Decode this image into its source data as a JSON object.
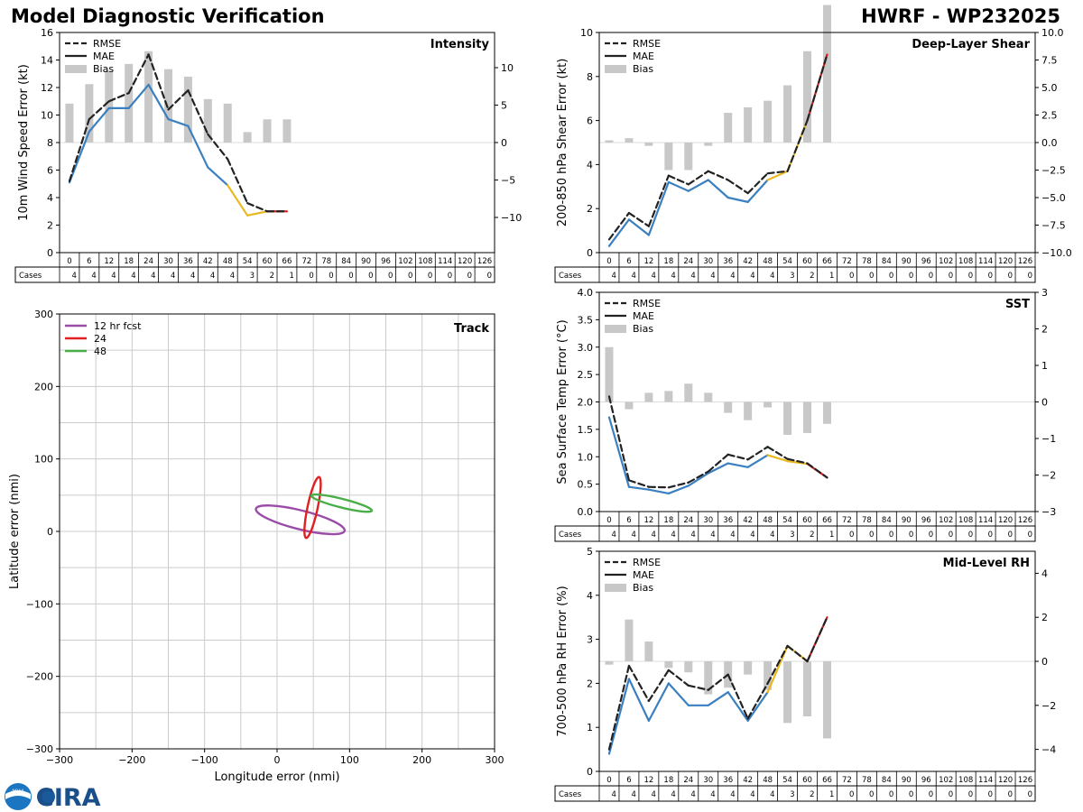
{
  "title_left": "Model Diagnostic Verification",
  "title_right": "HWRF - WP232025",
  "logo": {
    "noaa": "NOAA",
    "cira": "CIRA"
  },
  "colors": {
    "rmse": "#222222",
    "blue": "#3a80c0",
    "yellow": "#eab820",
    "red": "#e02020",
    "bias": "#c8c8c8",
    "grid": "#cccccc",
    "purple": "#9a4ca8",
    "green": "#4aae48"
  },
  "legend_labels": {
    "rmse": "RMSE",
    "mae": "MAE",
    "bias": "Bias"
  },
  "cases_label": "Cases",
  "chart_data": [
    {
      "id": "intensity",
      "type": "line",
      "title": "Intensity",
      "ylabel": "10m Wind Speed Error (kt)",
      "ylim": [
        0,
        16
      ],
      "yticks": [
        0,
        2,
        4,
        6,
        8,
        10,
        12,
        14,
        16
      ],
      "y2lim": [
        -14.7,
        14.7
      ],
      "y2ticks": [
        -10,
        -5,
        0,
        5,
        10
      ],
      "y2ticklabels": [
        "−10",
        "−5",
        "0",
        "5",
        "10"
      ],
      "x": [
        0,
        6,
        12,
        18,
        24,
        30,
        36,
        42,
        48,
        54,
        60,
        66,
        72,
        78,
        84,
        90,
        96,
        102,
        108,
        114,
        120,
        126
      ],
      "cases": [
        4,
        4,
        4,
        4,
        4,
        4,
        4,
        4,
        4,
        3,
        2,
        1,
        0,
        0,
        0,
        0,
        0,
        0,
        0,
        0,
        0,
        0
      ],
      "rmse": [
        5.2,
        9.7,
        11.0,
        11.6,
        14.4,
        10.4,
        11.8,
        8.6,
        6.8,
        3.6,
        3.0,
        3.0
      ],
      "mae": [
        5.1,
        8.8,
        10.5,
        10.5,
        12.2,
        9.7,
        9.2,
        6.2,
        4.9,
        2.7,
        3.0,
        3.0
      ],
      "bias": [
        5.2,
        7.8,
        9.6,
        10.5,
        12.2,
        9.8,
        8.8,
        5.8,
        5.2,
        1.4,
        3.1,
        3.1
      ]
    },
    {
      "id": "shear",
      "type": "line",
      "title": "Deep-Layer Shear",
      "ylabel": "200-850 hPa Shear Error (kt)",
      "ylim": [
        0,
        10
      ],
      "yticks": [
        0,
        2,
        4,
        6,
        8,
        10
      ],
      "y2lim": [
        -10,
        10
      ],
      "y2ticks": [
        -10,
        -7.5,
        -5,
        -2.5,
        0,
        2.5,
        5,
        7.5,
        10
      ],
      "y2ticklabels": [
        "−10.0",
        "−7.5",
        "−5.0",
        "−2.5",
        "0.0",
        "2.5",
        "5.0",
        "7.5",
        "10.0"
      ],
      "x": [
        0,
        6,
        12,
        18,
        24,
        30,
        36,
        42,
        48,
        54,
        60,
        66,
        72,
        78,
        84,
        90,
        96,
        102,
        108,
        114,
        120,
        126
      ],
      "cases": [
        4,
        4,
        4,
        4,
        4,
        4,
        4,
        4,
        4,
        3,
        2,
        1,
        0,
        0,
        0,
        0,
        0,
        0,
        0,
        0,
        0,
        0
      ],
      "rmse": [
        0.6,
        1.8,
        1.2,
        3.5,
        3.1,
        3.7,
        3.3,
        2.7,
        3.6,
        3.7,
        6.0,
        9.0
      ],
      "mae": [
        0.3,
        1.5,
        0.8,
        3.2,
        2.8,
        3.3,
        2.5,
        2.3,
        3.3,
        3.7,
        6.0,
        9.0
      ],
      "bias": [
        0.2,
        0.4,
        -0.3,
        -2.5,
        -2.5,
        -0.3,
        2.7,
        3.2,
        3.8,
        5.2,
        8.3,
        12.5
      ]
    },
    {
      "id": "sst",
      "type": "line",
      "title": "SST",
      "ylabel": "Sea Surface Temp Error (°C)",
      "ylim": [
        0,
        4
      ],
      "yticks": [
        0,
        0.5,
        1.0,
        1.5,
        2.0,
        2.5,
        3.0,
        3.5,
        4.0
      ],
      "yticklabels": [
        "0.0",
        "0.5",
        "1.0",
        "1.5",
        "2.0",
        "2.5",
        "3.0",
        "3.5",
        "4.0"
      ],
      "y2lim": [
        -3,
        3
      ],
      "y2ticks": [
        -3,
        -2,
        -1,
        0,
        1,
        2,
        3
      ],
      "y2ticklabels": [
        "−3",
        "−2",
        "−1",
        "0",
        "1",
        "2",
        "3"
      ],
      "x": [
        0,
        6,
        12,
        18,
        24,
        30,
        36,
        42,
        48,
        54,
        60,
        66,
        72,
        78,
        84,
        90,
        96,
        102,
        108,
        114,
        120,
        126
      ],
      "cases": [
        4,
        4,
        4,
        4,
        4,
        4,
        4,
        4,
        4,
        3,
        2,
        1,
        0,
        0,
        0,
        0,
        0,
        0,
        0,
        0,
        0,
        0
      ],
      "rmse": [
        2.1,
        0.57,
        0.45,
        0.44,
        0.53,
        0.73,
        1.04,
        0.95,
        1.18,
        0.96,
        0.88,
        0.62
      ],
      "mae": [
        1.72,
        0.45,
        0.4,
        0.33,
        0.47,
        0.7,
        0.88,
        0.81,
        1.03,
        0.92,
        0.87,
        0.62
      ],
      "bias": [
        1.5,
        -0.2,
        0.25,
        0.3,
        0.5,
        0.25,
        -0.3,
        -0.5,
        -0.15,
        -0.9,
        -0.85,
        -0.6
      ]
    },
    {
      "id": "rh",
      "type": "line",
      "title": "Mid-Level RH",
      "ylabel": "700-500 hPa RH Error (%)",
      "ylim": [
        0,
        5
      ],
      "yticks": [
        0,
        1,
        2,
        3,
        4,
        5
      ],
      "y2lim": [
        -5,
        5
      ],
      "y2ticks": [
        -4,
        -2,
        0,
        2,
        4
      ],
      "y2ticklabels": [
        "−4",
        "−2",
        "0",
        "2",
        "4"
      ],
      "x": [
        0,
        6,
        12,
        18,
        24,
        30,
        36,
        42,
        48,
        54,
        60,
        66,
        72,
        78,
        84,
        90,
        96,
        102,
        108,
        114,
        120,
        126
      ],
      "cases": [
        4,
        4,
        4,
        4,
        4,
        4,
        4,
        4,
        4,
        3,
        2,
        1,
        0,
        0,
        0,
        0,
        0,
        0,
        0,
        0,
        0,
        0
      ],
      "rmse": [
        0.5,
        2.4,
        1.6,
        2.3,
        1.95,
        1.85,
        2.2,
        1.2,
        2.0,
        2.85,
        2.5,
        3.5
      ],
      "mae": [
        0.4,
        2.1,
        1.15,
        2.0,
        1.5,
        1.5,
        1.8,
        1.15,
        1.8,
        2.85,
        2.5,
        3.5
      ],
      "bias": [
        -0.15,
        1.9,
        0.9,
        -0.3,
        -0.5,
        -1.5,
        -1.2,
        -0.6,
        -1.3,
        -2.8,
        -2.5,
        -3.5
      ]
    },
    {
      "id": "track",
      "type": "scatter",
      "title": "Track",
      "xlabel": "Longitude error (nmi)",
      "ylabel": "Latitude error (nmi)",
      "xlim": [
        -300,
        300
      ],
      "ylim": [
        -300,
        300
      ],
      "ticks": [
        -300,
        -200,
        -100,
        0,
        100,
        200,
        300
      ],
      "ticklabels": [
        "−300",
        "−200",
        "−100",
        "0",
        "100",
        "200",
        "300"
      ],
      "grid_values": [
        -250,
        -200,
        -150,
        -100,
        -50,
        0,
        50,
        100,
        150,
        200,
        250
      ],
      "ellipses": [
        {
          "name": "12 hr fcst",
          "color": "#9a4ca8",
          "cx": 32,
          "cy": 16,
          "rx": 63,
          "ry": 13,
          "angle": -14
        },
        {
          "name": "24",
          "color": "#e02020",
          "cx": 49,
          "cy": 33,
          "rx": 43,
          "ry": 7,
          "angle": 78
        },
        {
          "name": "48",
          "color": "#4aae48",
          "cx": 89,
          "cy": 39,
          "rx": 43,
          "ry": 6,
          "angle": -14
        }
      ]
    }
  ]
}
